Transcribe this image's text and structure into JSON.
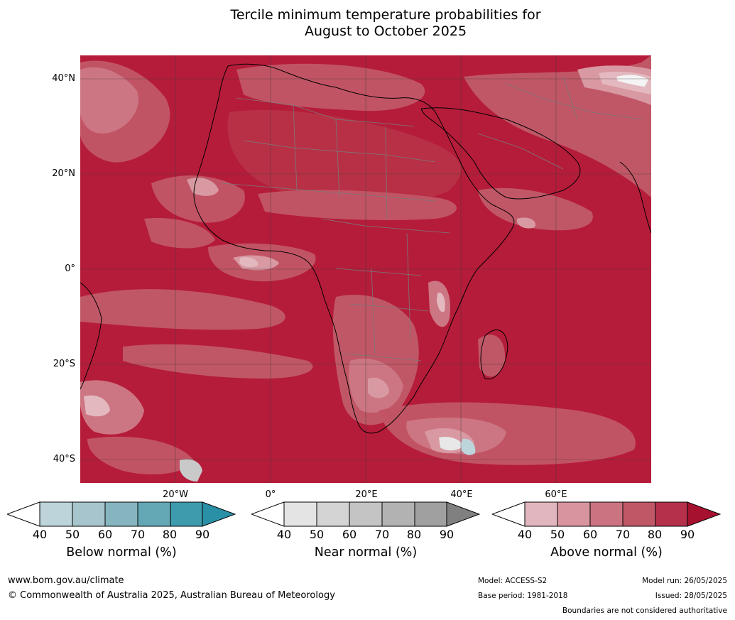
{
  "header": {
    "title_line1": "Tercile minimum temperature probabilities for",
    "title_line2": "August to October 2025"
  },
  "map": {
    "lat_labels": [
      "40°N",
      "20°N",
      "0°",
      "20°S",
      "40°S"
    ],
    "lon_labels": [
      "20°W",
      "0°",
      "20°E",
      "40°E",
      "60°E"
    ],
    "colors": {
      "above_90": "#b51c3a",
      "above_80": "#b83045",
      "above_70": "#c15464",
      "above_60": "#cd7683",
      "above_50": "#d899a2",
      "above_40": "#e3b9bf",
      "near": "#d5d5d5",
      "below": "#a9c8d0",
      "grid": "#3c3c3c",
      "border": "#7a7a7a",
      "coast": "#000000"
    }
  },
  "legends": {
    "ticks": [
      "40",
      "50",
      "60",
      "70",
      "80",
      "90"
    ],
    "below": {
      "title": "Below normal (%)",
      "colors": [
        "#bed4db",
        "#a6c5cc",
        "#86b5c0",
        "#64a8b6",
        "#3d9bad",
        "#2a90a6"
      ]
    },
    "near": {
      "title": "Near normal (%)",
      "colors": [
        "#e4e4e4",
        "#d4d4d4",
        "#c4c4c4",
        "#b2b2b2",
        "#a0a0a0",
        "#808080"
      ]
    },
    "above": {
      "title": "Above normal (%)",
      "colors": [
        "#e1b6be",
        "#d8959f",
        "#cc7381",
        "#c05766",
        "#b5304b",
        "#a5112e"
      ]
    }
  },
  "footer": {
    "website": "www.bom.gov.au/climate",
    "copyright": "© Commonwealth of Australia 2025, Australian Bureau of Meteorology",
    "model": "Model: ACCESS-S2",
    "base_period": "Base period: 1981-2018",
    "model_run": "Model run: 26/05/2025",
    "issued": "Issued: 28/05/2025",
    "boundaries_note": "Boundaries are not considered authoritative"
  }
}
